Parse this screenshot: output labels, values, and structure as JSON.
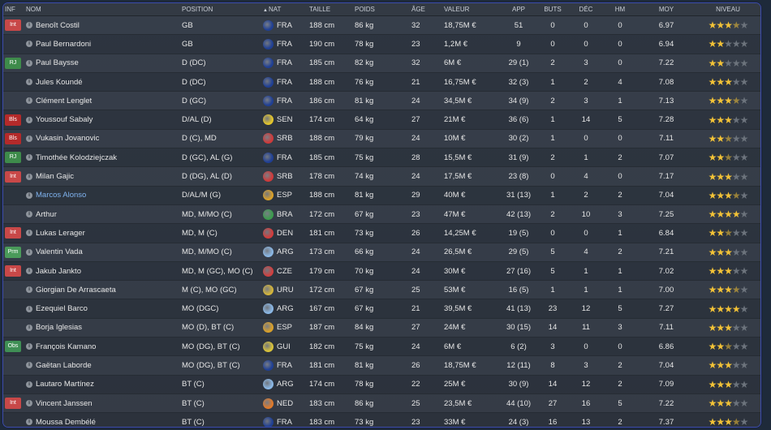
{
  "headers": {
    "inf": "INF",
    "nom": "NOM",
    "position": "POSITION",
    "nat": "NAT",
    "taille": "TAILLE",
    "poids": "POIDS",
    "age": "ÂGE",
    "valeur": "VALEUR",
    "app": "APP",
    "buts": "BUTS",
    "dec": "DÉC",
    "hm": "HM",
    "moy": "MOY",
    "niveau": "NIVEAU"
  },
  "badge_colors": {
    "Int": "#c84848",
    "Bls": "#b42a2a",
    "RJ": "#3e8b4b",
    "Prm": "#4a9a5a",
    "Obs": "#3f8f55"
  },
  "flag_colors": {
    "FRA": "#1f3f94",
    "SEN": "#e3c52b",
    "SRB": "#cf3a3a",
    "ESP": "#d9a02a",
    "BRA": "#3b9b4d",
    "DEN": "#d23c3c",
    "ARG": "#8ab7e5",
    "CZE": "#cf4040",
    "URU": "#d3b43a",
    "GUI": "#d8c23a",
    "NED": "#e07a2a"
  },
  "players": [
    {
      "inf": "Int",
      "name": "Benoît Costil",
      "pos": "GB",
      "nat": "FRA",
      "taille": "188 cm",
      "poids": "86 kg",
      "age": "32",
      "valeur": "18,75M €",
      "app": "51",
      "buts": "0",
      "dec": "0",
      "hm": "0",
      "moy": "6.97",
      "stars": 3.5
    },
    {
      "inf": "",
      "name": "Paul Bernardoni",
      "pos": "GB",
      "nat": "FRA",
      "taille": "190 cm",
      "poids": "78 kg",
      "age": "23",
      "valeur": "1,2M €",
      "app": "9",
      "buts": "0",
      "dec": "0",
      "hm": "0",
      "moy": "6.94",
      "stars": 2
    },
    {
      "inf": "RJ",
      "name": "Paul Baysse",
      "pos": "D (DC)",
      "nat": "FRA",
      "taille": "185 cm",
      "poids": "82 kg",
      "age": "32",
      "valeur": "6M €",
      "app": "29 (1)",
      "buts": "2",
      "dec": "3",
      "hm": "0",
      "moy": "7.22",
      "stars": 2
    },
    {
      "inf": "",
      "name": "Jules Koundé",
      "pos": "D (DC)",
      "nat": "FRA",
      "taille": "188 cm",
      "poids": "76 kg",
      "age": "21",
      "valeur": "16,75M €",
      "app": "32 (3)",
      "buts": "1",
      "dec": "2",
      "hm": "4",
      "moy": "7.08",
      "stars": 3
    },
    {
      "inf": "",
      "name": "Clément Lenglet",
      "pos": "D (GC)",
      "nat": "FRA",
      "taille": "186 cm",
      "poids": "81 kg",
      "age": "24",
      "valeur": "34,5M €",
      "app": "34 (9)",
      "buts": "2",
      "dec": "3",
      "hm": "1",
      "moy": "7.13",
      "stars": 3.5
    },
    {
      "inf": "Bls",
      "name": "Youssouf Sabaly",
      "pos": "D/AL (D)",
      "nat": "SEN",
      "taille": "174 cm",
      "poids": "64 kg",
      "age": "27",
      "valeur": "21M €",
      "app": "36 (6)",
      "buts": "1",
      "dec": "14",
      "hm": "5",
      "moy": "7.28",
      "stars": 3
    },
    {
      "inf": "Bls",
      "name": "Vukasin Jovanovic",
      "pos": "D (C), MD",
      "nat": "SRB",
      "taille": "188 cm",
      "poids": "79 kg",
      "age": "24",
      "valeur": "10M €",
      "app": "30 (2)",
      "buts": "1",
      "dec": "0",
      "hm": "0",
      "moy": "7.11",
      "stars": 2.5
    },
    {
      "inf": "RJ",
      "name": "Timothée Kolodziejczak",
      "pos": "D (GC), AL (G)",
      "nat": "FRA",
      "taille": "185 cm",
      "poids": "75 kg",
      "age": "28",
      "valeur": "15,5M €",
      "app": "31 (9)",
      "buts": "2",
      "dec": "1",
      "hm": "2",
      "moy": "7.07",
      "stars": 2.5
    },
    {
      "inf": "Int",
      "name": "Milan Gajic",
      "pos": "D (DG), AL (D)",
      "nat": "SRB",
      "taille": "178 cm",
      "poids": "74 kg",
      "age": "24",
      "valeur": "17,5M €",
      "app": "23 (8)",
      "buts": "0",
      "dec": "4",
      "hm": "0",
      "moy": "7.17",
      "stars": 3
    },
    {
      "inf": "",
      "name": "Marcos Alonso",
      "pos": "D/AL/M (G)",
      "nat": "ESP",
      "taille": "188 cm",
      "poids": "81 kg",
      "age": "29",
      "valeur": "40M €",
      "app": "31 (13)",
      "buts": "1",
      "dec": "2",
      "hm": "2",
      "moy": "7.04",
      "stars": 3.5,
      "highlight": true
    },
    {
      "inf": "",
      "name": "Arthur",
      "pos": "MD, M/MO (C)",
      "nat": "BRA",
      "taille": "172 cm",
      "poids": "67 kg",
      "age": "23",
      "valeur": "47M €",
      "app": "42 (13)",
      "buts": "2",
      "dec": "10",
      "hm": "3",
      "moy": "7.25",
      "stars": 4
    },
    {
      "inf": "Int",
      "name": "Lukas Lerager",
      "pos": "MD, M (C)",
      "nat": "DEN",
      "taille": "181 cm",
      "poids": "73 kg",
      "age": "26",
      "valeur": "14,25M €",
      "app": "19 (5)",
      "buts": "0",
      "dec": "0",
      "hm": "1",
      "moy": "6.84",
      "stars": 2.5
    },
    {
      "inf": "Prm",
      "name": "Valentin Vada",
      "pos": "MD, M/MO (C)",
      "nat": "ARG",
      "taille": "173 cm",
      "poids": "66 kg",
      "age": "24",
      "valeur": "26,5M €",
      "app": "29 (5)",
      "buts": "5",
      "dec": "4",
      "hm": "2",
      "moy": "7.21",
      "stars": 3
    },
    {
      "inf": "Int",
      "name": "Jakub Jankto",
      "pos": "MD, M (GC), MO (C)",
      "nat": "CZE",
      "taille": "179 cm",
      "poids": "70 kg",
      "age": "24",
      "valeur": "30M €",
      "app": "27 (16)",
      "buts": "5",
      "dec": "1",
      "hm": "1",
      "moy": "7.02",
      "stars": 3
    },
    {
      "inf": "",
      "name": "Giorgian De Arrascaeta",
      "pos": "M (C), MO (GC)",
      "nat": "URU",
      "taille": "172 cm",
      "poids": "67 kg",
      "age": "25",
      "valeur": "53M €",
      "app": "16 (5)",
      "buts": "1",
      "dec": "1",
      "hm": "1",
      "moy": "7.00",
      "stars": 3.5
    },
    {
      "inf": "",
      "name": "Ezequiel Barco",
      "pos": "MO (DGC)",
      "nat": "ARG",
      "taille": "167 cm",
      "poids": "67 kg",
      "age": "21",
      "valeur": "39,5M €",
      "app": "41 (13)",
      "buts": "23",
      "dec": "12",
      "hm": "5",
      "moy": "7.27",
      "stars": 4
    },
    {
      "inf": "",
      "name": "Borja Iglesias",
      "pos": "MO (D), BT (C)",
      "nat": "ESP",
      "taille": "187 cm",
      "poids": "84 kg",
      "age": "27",
      "valeur": "24M €",
      "app": "30 (15)",
      "buts": "14",
      "dec": "11",
      "hm": "3",
      "moy": "7.11",
      "stars": 3
    },
    {
      "inf": "Obs",
      "name": "François Kamano",
      "pos": "MO (DG), BT (C)",
      "nat": "GUI",
      "taille": "182 cm",
      "poids": "75 kg",
      "age": "24",
      "valeur": "6M €",
      "app": "6 (2)",
      "buts": "3",
      "dec": "0",
      "hm": "0",
      "moy": "6.86",
      "stars": 2.5
    },
    {
      "inf": "",
      "name": "Gaëtan Laborde",
      "pos": "MO (DG), BT (C)",
      "nat": "FRA",
      "taille": "181 cm",
      "poids": "81 kg",
      "age": "26",
      "valeur": "18,75M €",
      "app": "12 (11)",
      "buts": "8",
      "dec": "3",
      "hm": "2",
      "moy": "7.04",
      "stars": 3
    },
    {
      "inf": "",
      "name": "Lautaro Martínez",
      "pos": "BT (C)",
      "nat": "ARG",
      "taille": "174 cm",
      "poids": "78 kg",
      "age": "22",
      "valeur": "25M €",
      "app": "30 (9)",
      "buts": "14",
      "dec": "12",
      "hm": "2",
      "moy": "7.09",
      "stars": 3
    },
    {
      "inf": "Int",
      "name": "Vincent Janssen",
      "pos": "BT (C)",
      "nat": "NED",
      "taille": "183 cm",
      "poids": "86 kg",
      "age": "25",
      "valeur": "23,5M €",
      "app": "44 (10)",
      "buts": "27",
      "dec": "16",
      "hm": "5",
      "moy": "7.22",
      "stars": 3
    },
    {
      "inf": "",
      "name": "Moussa Dembélé",
      "pos": "BT (C)",
      "nat": "FRA",
      "taille": "183 cm",
      "poids": "73 kg",
      "age": "23",
      "valeur": "33M €",
      "app": "24 (3)",
      "buts": "16",
      "dec": "13",
      "hm": "2",
      "moy": "7.37",
      "stars": 3.5
    }
  ]
}
